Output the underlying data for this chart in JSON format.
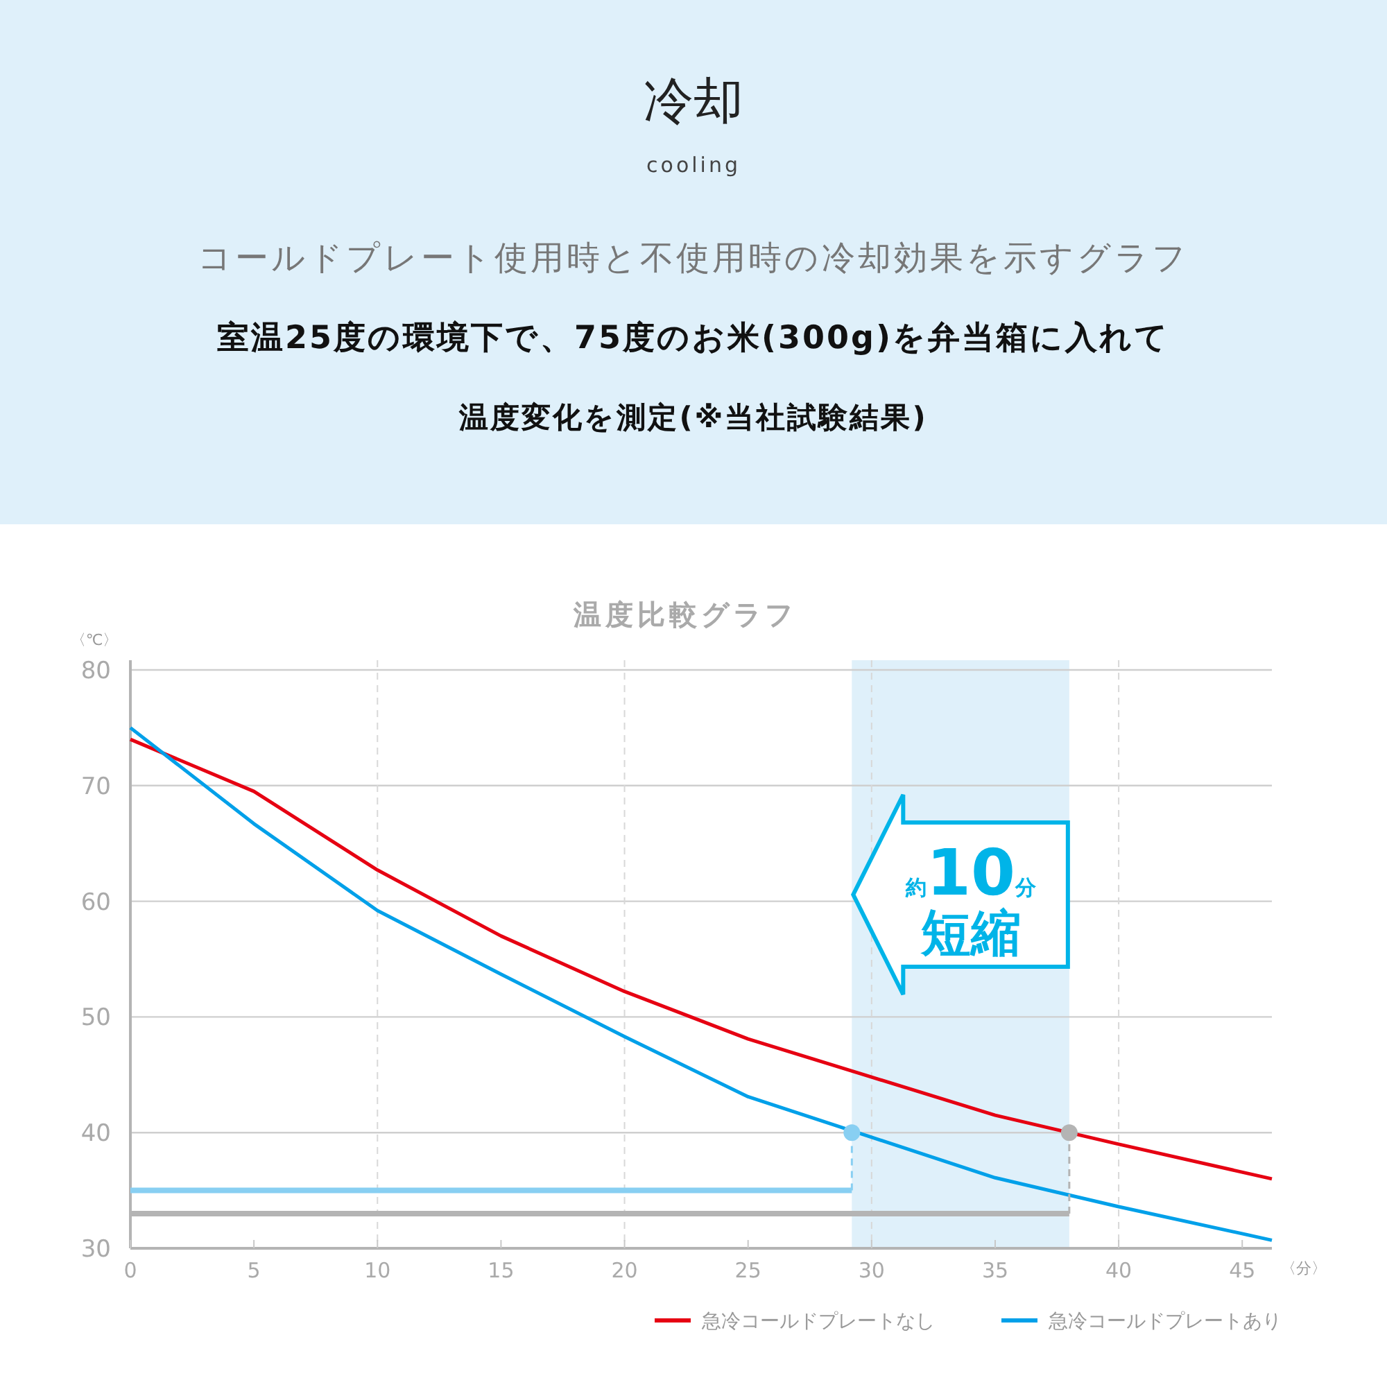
{
  "chart_data": {
    "type": "line",
    "title": "冷却",
    "subtitle": "cooling",
    "annotations": [
      "コールドプレート使用時と不使用時の冷却効果を示すグラフ",
      "室温25度の環境下で、75度のお米(300g)を弁当箱に入れて",
      "温度変化を測定(※当社試験結果)",
      "温度比較グラフ",
      "約10分短縮"
    ],
    "xlabel": "〈分〉",
    "ylabel": "〈℃〉",
    "xlim": [
      0,
      46.2
    ],
    "xticks": [
      0,
      5,
      10,
      15,
      20,
      25,
      30,
      35,
      40,
      45
    ],
    "ylim": [
      30,
      80
    ],
    "yticks": [
      30,
      40,
      50,
      60,
      70,
      80
    ],
    "grid": true,
    "legend": "bottom right",
    "bands": [
      {
        "axis": "x",
        "from": 29.2,
        "to": 38,
        "color": "#dff0fa"
      }
    ],
    "series": [
      {
        "name": "急冷コールドプレートなし",
        "color": "#e60012",
        "x": [
          0,
          5,
          10,
          15,
          20,
          25,
          30,
          35,
          40,
          46.2
        ],
        "values": [
          74,
          69.5,
          62.7,
          57,
          52.2,
          48.1,
          44.8,
          41.5,
          39,
          36
        ]
      },
      {
        "name": "急冷コールドプレートあり",
        "color": "#00a0e9",
        "x": [
          0,
          5,
          10,
          15,
          20,
          25,
          30,
          35,
          40,
          46.2
        ],
        "values": [
          75,
          66.7,
          59.2,
          53.7,
          48.3,
          43.1,
          39.6,
          36.1,
          33.6,
          30.7
        ]
      },
      {
        "color": "#88cff2",
        "x": [
          0,
          29.2
        ],
        "values": [
          35,
          35
        ]
      },
      {
        "color": "#b4b4b4",
        "x": [
          0,
          38
        ],
        "values": [
          33,
          33
        ]
      },
      {
        "color": "#88cff2",
        "x": [
          29.2,
          29.2
        ],
        "values": [
          35,
          40
        ],
        "line_style": "dashed"
      },
      {
        "color": "#b4b4b4",
        "x": [
          38,
          38
        ],
        "values": [
          33,
          40
        ],
        "line_style": "dashed"
      },
      {
        "type": "scatter",
        "marker": "circle",
        "color": "#88cff2",
        "x": [
          29.2
        ],
        "values": [
          40
        ]
      },
      {
        "type": "scatter",
        "marker": "circle",
        "color": "#b4b4b4",
        "x": [
          38
        ],
        "values": [
          40
        ]
      }
    ]
  }
}
